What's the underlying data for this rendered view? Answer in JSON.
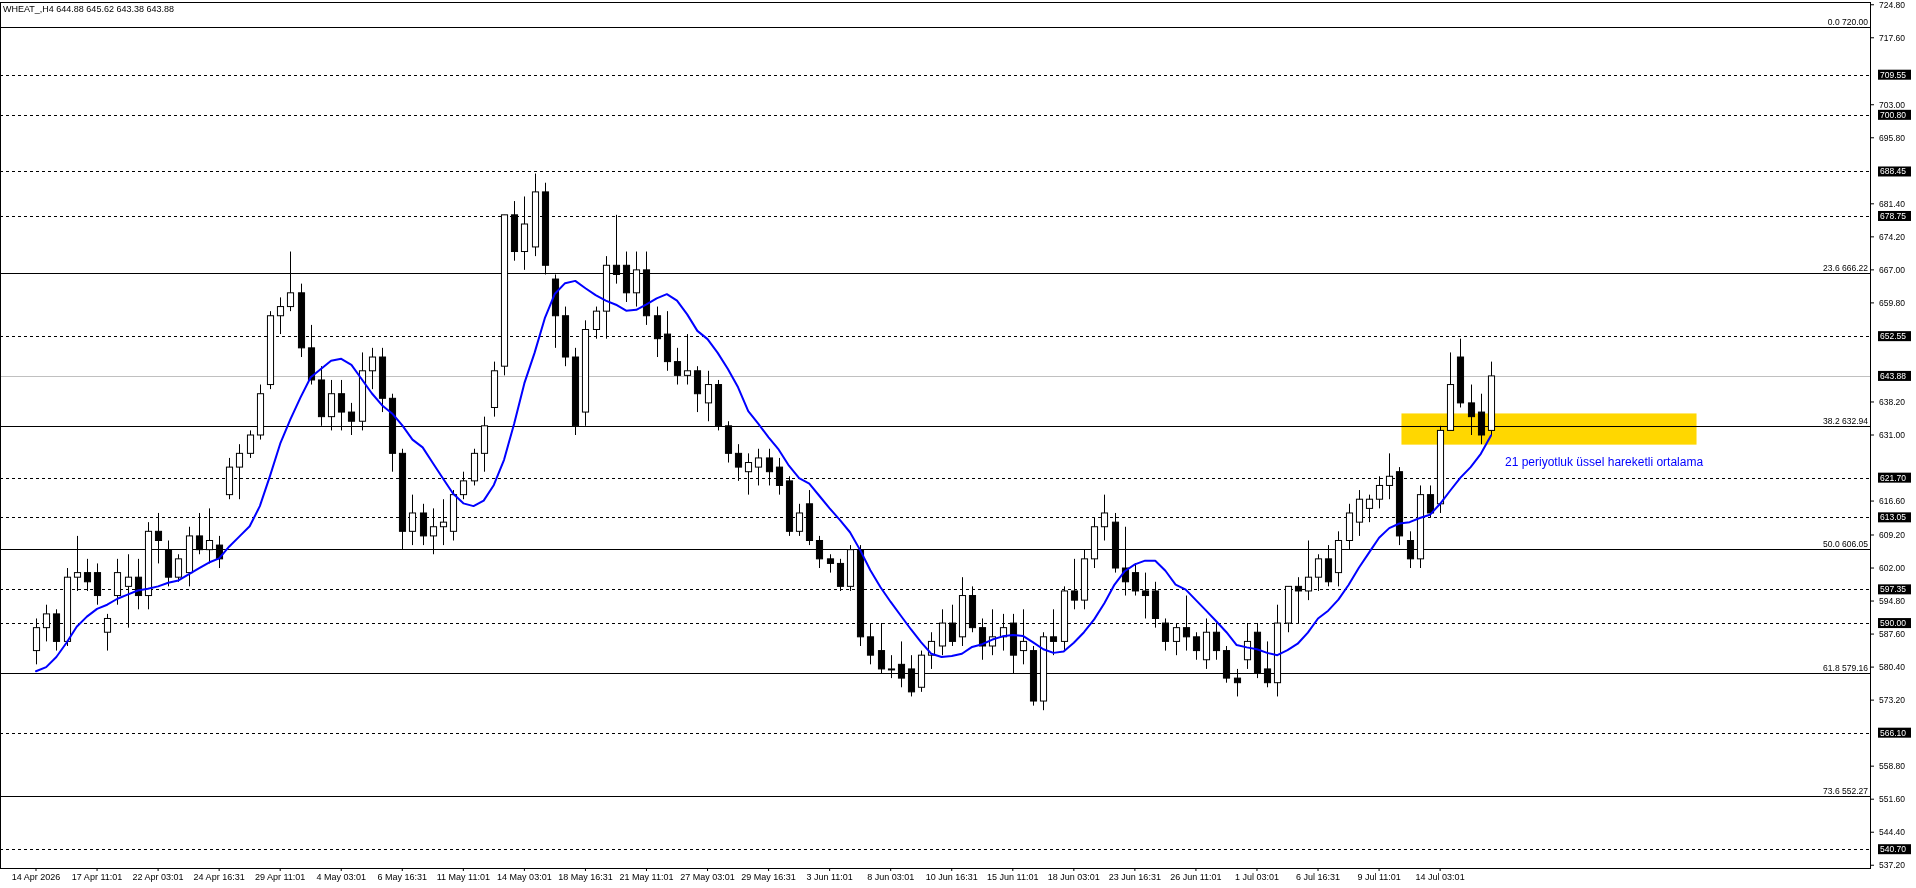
{
  "chart_data": {
    "type": "candlestick",
    "title": "WHEAT_,H4 644.88 645.62 643.38 643.88",
    "color": "#000000",
    "categories": [
      "14 Apr 2026",
      null,
      null,
      null,
      null,
      null,
      "17 Apr 11:01",
      null,
      null,
      null,
      null,
      null,
      "22 Apr 03:01",
      null,
      null,
      null,
      null,
      null,
      "24 Apr 16:31",
      null,
      null,
      null,
      null,
      null,
      "29 Apr 11:01",
      null,
      null,
      null,
      null,
      null,
      "4 May 03:01",
      null,
      null,
      null,
      null,
      null,
      "6 May 16:31",
      null,
      null,
      null,
      null,
      null,
      "11 May 11:01",
      null,
      null,
      null,
      null,
      null,
      "14 May 03:01",
      null,
      null,
      null,
      null,
      null,
      "18 May 16:31",
      null,
      null,
      null,
      null,
      null,
      "21 May 11:01",
      null,
      null,
      null,
      null,
      null,
      "27 May 03:01",
      null,
      null,
      null,
      null,
      null,
      "29 May 16:31",
      null,
      null,
      null,
      null,
      null,
      "3 Jun 11:01",
      null,
      null,
      null,
      null,
      null,
      "8 Jun 03:01",
      null,
      null,
      null,
      null,
      null,
      "10 Jun 16:31",
      null,
      null,
      null,
      null,
      null,
      "15 Jun 11:01",
      null,
      null,
      null,
      null,
      null,
      "18 Jun 03:01",
      null,
      null,
      null,
      null,
      null,
      "23 Jun 16:31",
      null,
      null,
      null,
      null,
      null,
      "26 Jun 11:01",
      null,
      null,
      null,
      null,
      null,
      "1 Jul 03:01",
      null,
      null,
      null,
      null,
      null,
      "6 Jul 16:31",
      null,
      null,
      null,
      null,
      null,
      "9 Jul 11:01",
      null,
      null,
      null,
      null,
      null,
      "14 Jul 03:01",
      null,
      null,
      null,
      null,
      null
    ],
    "ohlc": [
      [
        584,
        591,
        581,
        589
      ],
      [
        589,
        594,
        586,
        592
      ],
      [
        592,
        593,
        584,
        586
      ],
      [
        586,
        602,
        585,
        600
      ],
      [
        600,
        609,
        597,
        601
      ],
      [
        601,
        604,
        597,
        599
      ],
      [
        601,
        603,
        594,
        596
      ],
      [
        588,
        592,
        584,
        591
      ],
      [
        596,
        604,
        594,
        601
      ],
      [
        598,
        605,
        589,
        600
      ],
      [
        600,
        604,
        593,
        596
      ],
      [
        596,
        612,
        593,
        610
      ],
      [
        610,
        614,
        603,
        608
      ],
      [
        606,
        608,
        598,
        600
      ],
      [
        600,
        605,
        599,
        604
      ],
      [
        601,
        611,
        598,
        609
      ],
      [
        609,
        614,
        605,
        606
      ],
      [
        606,
        615,
        603,
        608
      ],
      [
        607,
        609,
        602,
        604
      ],
      [
        618,
        626,
        617,
        624
      ],
      [
        624,
        629,
        617,
        627
      ],
      [
        627,
        632,
        626,
        631
      ],
      [
        631,
        642,
        630,
        640
      ],
      [
        642,
        658,
        641,
        657
      ],
      [
        657,
        661,
        653,
        659
      ],
      [
        659,
        671,
        658,
        662
      ],
      [
        662,
        664,
        648,
        650
      ],
      [
        650,
        655,
        642,
        643
      ],
      [
        643,
        646,
        633,
        635
      ],
      [
        635,
        643,
        632,
        640
      ],
      [
        640,
        643,
        632,
        636
      ],
      [
        636,
        638,
        631,
        634
      ],
      [
        634,
        649,
        632,
        645
      ],
      [
        645,
        650,
        641,
        648
      ],
      [
        648,
        650,
        636,
        639
      ],
      [
        639,
        640,
        623,
        627
      ],
      [
        627,
        628,
        606,
        610
      ],
      [
        610,
        618,
        607,
        614
      ],
      [
        614,
        616,
        607,
        609
      ],
      [
        609,
        615,
        605,
        611
      ],
      [
        611,
        617,
        607,
        612
      ],
      [
        610,
        619,
        608,
        618
      ],
      [
        618,
        623,
        617,
        621
      ],
      [
        621,
        628,
        620,
        627
      ],
      [
        627,
        635,
        623,
        633
      ],
      [
        637,
        647,
        635,
        645
      ],
      [
        646,
        679,
        644,
        679
      ],
      [
        679,
        682,
        669,
        671
      ],
      [
        671,
        683,
        667,
        677
      ],
      [
        672,
        688,
        670,
        684
      ],
      [
        684,
        686,
        666,
        668
      ],
      [
        665,
        666,
        650,
        657
      ],
      [
        657,
        659,
        646,
        648
      ],
      [
        648,
        650,
        631,
        633
      ],
      [
        636,
        656,
        633,
        654
      ],
      [
        654,
        659,
        652,
        658
      ],
      [
        658,
        670,
        652,
        668
      ],
      [
        668,
        679,
        664,
        666
      ],
      [
        668,
        671,
        660,
        662
      ],
      [
        662,
        671,
        659,
        667
      ],
      [
        667,
        671,
        655,
        657
      ],
      [
        657,
        659,
        648,
        652
      ],
      [
        653,
        658,
        645,
        647
      ],
      [
        647,
        650,
        642,
        644
      ],
      [
        644,
        653,
        642,
        645
      ],
      [
        645,
        646,
        636,
        640
      ],
      [
        638,
        645,
        634,
        642
      ],
      [
        642,
        643,
        632,
        633
      ],
      [
        633,
        634,
        625,
        627
      ],
      [
        627,
        629,
        621,
        624
      ],
      [
        623,
        627,
        618,
        625
      ],
      [
        624,
        628,
        620,
        626
      ],
      [
        626,
        628,
        620,
        623
      ],
      [
        624,
        626,
        618,
        620
      ],
      [
        621,
        622,
        609,
        610
      ],
      [
        610,
        616,
        609,
        614
      ],
      [
        616,
        619,
        607,
        608
      ],
      [
        608,
        609,
        602,
        604
      ],
      [
        604,
        605,
        601,
        603
      ],
      [
        603,
        604,
        597,
        598
      ],
      [
        598,
        607,
        597,
        606
      ],
      [
        606,
        607,
        585,
        587
      ],
      [
        587,
        590,
        581,
        583
      ],
      [
        584,
        590,
        579,
        580
      ],
      [
        580,
        583,
        578,
        580
      ],
      [
        581,
        586,
        576,
        578
      ],
      [
        580,
        583,
        574,
        575
      ],
      [
        576,
        584,
        575,
        583
      ],
      [
        583,
        588,
        580,
        586
      ],
      [
        585,
        593,
        583,
        590
      ],
      [
        590,
        594,
        585,
        586
      ],
      [
        587,
        600,
        585,
        596
      ],
      [
        596,
        598,
        588,
        589
      ],
      [
        589,
        591,
        582,
        585
      ],
      [
        585,
        593,
        583,
        587
      ],
      [
        587,
        592,
        584,
        589
      ],
      [
        590,
        592,
        579,
        583
      ],
      [
        584,
        593,
        581,
        586
      ],
      [
        584,
        585,
        572,
        573
      ],
      [
        573,
        588,
        571,
        587
      ],
      [
        587,
        593,
        583,
        586
      ],
      [
        586,
        598,
        584,
        597
      ],
      [
        597,
        604,
        593,
        595
      ],
      [
        595,
        606,
        593,
        604
      ],
      [
        604,
        613,
        602,
        611
      ],
      [
        611,
        618,
        608,
        614
      ],
      [
        612,
        614,
        601,
        602
      ],
      [
        602,
        611,
        596,
        599
      ],
      [
        601,
        603,
        596,
        597
      ],
      [
        597,
        601,
        591,
        596
      ],
      [
        597,
        599,
        589,
        591
      ],
      [
        590,
        591,
        584,
        586
      ],
      [
        586,
        590,
        583,
        589
      ],
      [
        589,
        596,
        584,
        587
      ],
      [
        587,
        588,
        582,
        584
      ],
      [
        582,
        591,
        580,
        588
      ],
      [
        588,
        590,
        582,
        584
      ],
      [
        584,
        585,
        577,
        578
      ],
      [
        578,
        580,
        574,
        577
      ],
      [
        582,
        590,
        580,
        586
      ],
      [
        588,
        590,
        578,
        579
      ],
      [
        580,
        586,
        576,
        577
      ],
      [
        577,
        594,
        574,
        590
      ],
      [
        590,
        598,
        588,
        598
      ],
      [
        598,
        600,
        590,
        597
      ],
      [
        597,
        608,
        595,
        600
      ],
      [
        600,
        605,
        597,
        604
      ],
      [
        604,
        607,
        598,
        599
      ],
      [
        601,
        610,
        598,
        608
      ],
      [
        608,
        616,
        606,
        614
      ],
      [
        612,
        619,
        609,
        617
      ],
      [
        615,
        618,
        612,
        617
      ],
      [
        617,
        622,
        615,
        620
      ],
      [
        620,
        627,
        617,
        622
      ],
      [
        623,
        624,
        607,
        609
      ],
      [
        608,
        610,
        602,
        604
      ],
      [
        604,
        620,
        602,
        618
      ],
      [
        618,
        620,
        613,
        614
      ],
      [
        616,
        633,
        614,
        632
      ],
      [
        632,
        649,
        632,
        642
      ],
      [
        648,
        652,
        637,
        638
      ],
      [
        638,
        642,
        631,
        635
      ],
      [
        636,
        640,
        629,
        631
      ],
      [
        632,
        647,
        631,
        643.88
      ]
    ],
    "series": [
      {
        "type": "line",
        "name": "21 periyotluk üssel hareketli ortalama",
        "color": "#0000ff",
        "values": [
          579.5,
          580.4,
          582.6,
          585.7,
          589.2,
          591.4,
          593.1,
          594.0,
          595.3,
          596.2,
          597.1,
          597.5,
          598.0,
          598.8,
          599.3,
          600.6,
          601.9,
          603.2,
          604.1,
          606.7,
          608.9,
          611.1,
          615.5,
          622.1,
          629.1,
          634.4,
          639.2,
          643.6,
          645.4,
          647.2,
          647.6,
          646.3,
          643.2,
          640.1,
          637.5,
          635.7,
          633.1,
          630.0,
          628.3,
          624.9,
          621.5,
          618.2,
          616.1,
          615.5,
          616.7,
          620.1,
          625.6,
          633.5,
          642.3,
          648.9,
          656.4,
          661.8,
          664.1,
          664.6,
          663.0,
          661.5,
          660.3,
          659.4,
          658.1,
          658.3,
          659.5,
          660.8,
          661.7,
          660.3,
          657.3,
          653.7,
          651.9,
          648.9,
          645.4,
          641.4,
          636.2,
          633.4,
          630.5,
          627.8,
          624.3,
          621.6,
          620.4,
          617.7,
          615.0,
          612.5,
          609.8,
          605.9,
          601.5,
          597.8,
          594.6,
          591.6,
          588.6,
          585.8,
          583.3,
          582.6,
          582.8,
          583.3,
          584.8,
          585.4,
          586.4,
          587.1,
          587.4,
          587.2,
          585.8,
          584.3,
          583.5,
          583.8,
          585.7,
          588.0,
          590.8,
          594.3,
          598.4,
          601.3,
          602.8,
          603.6,
          603.6,
          601.4,
          598.4,
          597.3,
          595.0,
          592.7,
          590.4,
          588.0,
          585.2,
          584.7,
          584.3,
          583.5,
          583.0,
          584.1,
          585.5,
          587.9,
          591.0,
          592.7,
          595.1,
          598.3,
          602.0,
          605.3,
          608.6,
          610.7,
          611.7,
          612.0,
          612.9,
          613.6,
          616.0,
          618.9,
          621.7,
          624.0,
          626.9,
          630.9
        ]
      }
    ],
    "ylim": [
      536.6,
      725.4
    ],
    "yticks": [
      {
        "value": 724.8,
        "label": "724.80"
      },
      {
        "value": 717.6,
        "label": "717.60"
      },
      {
        "value": 703.0,
        "label": "703.00"
      },
      {
        "value": 695.8,
        "label": "695.80"
      },
      {
        "value": 681.4,
        "label": "681.40"
      },
      {
        "value": 674.2,
        "label": "674.20"
      },
      {
        "value": 667.0,
        "label": "667.00"
      },
      {
        "value": 659.8,
        "label": "659.80"
      },
      {
        "value": 638.2,
        "label": "638.20"
      },
      {
        "value": 631.0,
        "label": "631.00"
      },
      {
        "value": 616.6,
        "label": "616.60"
      },
      {
        "value": 609.2,
        "label": "609.20"
      },
      {
        "value": 602.0,
        "label": "602.00"
      },
      {
        "value": 594.8,
        "label": "594.80"
      },
      {
        "value": 587.6,
        "label": "587.60"
      },
      {
        "value": 580.4,
        "label": "580.40"
      },
      {
        "value": 573.2,
        "label": "573.20"
      },
      {
        "value": 558.8,
        "label": "558.80"
      },
      {
        "value": 551.6,
        "label": "551.60"
      },
      {
        "value": 544.4,
        "label": "544.40"
      },
      {
        "value": 537.2,
        "label": "537.20"
      }
    ],
    "ref_lines": [
      {
        "axis": "y",
        "value": 720.0,
        "color": "#000000",
        "line_style": "solid"
      },
      {
        "axis": "y",
        "value": 709.55,
        "label": "709.55",
        "color": "#000000",
        "line_style": "dashed"
      },
      {
        "axis": "y",
        "value": 700.8,
        "label": "700.80",
        "color": "#000000",
        "line_style": "dashed"
      },
      {
        "axis": "y",
        "value": 688.45,
        "label": "688.45",
        "color": "#000000",
        "line_style": "dashed"
      },
      {
        "axis": "y",
        "value": 678.75,
        "label": "678.75",
        "color": "#000000",
        "line_style": "dashed"
      },
      {
        "axis": "y",
        "value": 666.22,
        "color": "#000000",
        "line_style": "solid"
      },
      {
        "axis": "y",
        "value": 652.55,
        "label": "652.55",
        "color": "#000000",
        "line_style": "dashed"
      },
      {
        "axis": "y",
        "value": 643.88,
        "label": "643.88",
        "color": "#c0c0c0",
        "line_style": "solid"
      },
      {
        "axis": "y",
        "value": 632.94,
        "color": "#000000",
        "line_style": "solid"
      },
      {
        "axis": "y",
        "value": 621.7,
        "label": "621.70",
        "color": "#000000",
        "line_style": "dashed"
      },
      {
        "axis": "y",
        "value": 613.05,
        "label": "613.05",
        "color": "#000000",
        "line_style": "dashed"
      },
      {
        "axis": "y",
        "value": 606.05,
        "color": "#000000",
        "line_style": "solid"
      },
      {
        "axis": "y",
        "value": 597.35,
        "label": "597.35",
        "color": "#000000",
        "line_style": "dashed"
      },
      {
        "axis": "y",
        "value": 590.0,
        "label": "590.00",
        "color": "#000000",
        "line_style": "dashed"
      },
      {
        "axis": "y",
        "value": 579.16,
        "color": "#000000",
        "line_style": "solid"
      },
      {
        "axis": "y",
        "value": 566.1,
        "label": "566.10",
        "color": "#000000",
        "line_style": "dashed"
      },
      {
        "axis": "y",
        "value": 552.27,
        "color": "#000000",
        "line_style": "solid"
      },
      {
        "axis": "y",
        "value": 540.7,
        "label": "540.70",
        "color": "#000000",
        "line_style": "dashed"
      }
    ],
    "bands": [
      {
        "axis": "y",
        "from": 628.9,
        "to": 635.7,
        "color": "#ffd700"
      }
    ],
    "annotations": [
      {
        "text": "0.0 720.00",
        "y": 720.0
      },
      {
        "text": "23.6 666.22",
        "y": 666.22
      },
      {
        "text": "38.2 632.94",
        "y": 632.94
      },
      {
        "text": "50.0 606.05",
        "y": 606.05
      },
      {
        "text": "61.8 579.16",
        "y": 579.16
      },
      {
        "text": "73.6 552.27",
        "y": 552.27
      }
    ]
  }
}
